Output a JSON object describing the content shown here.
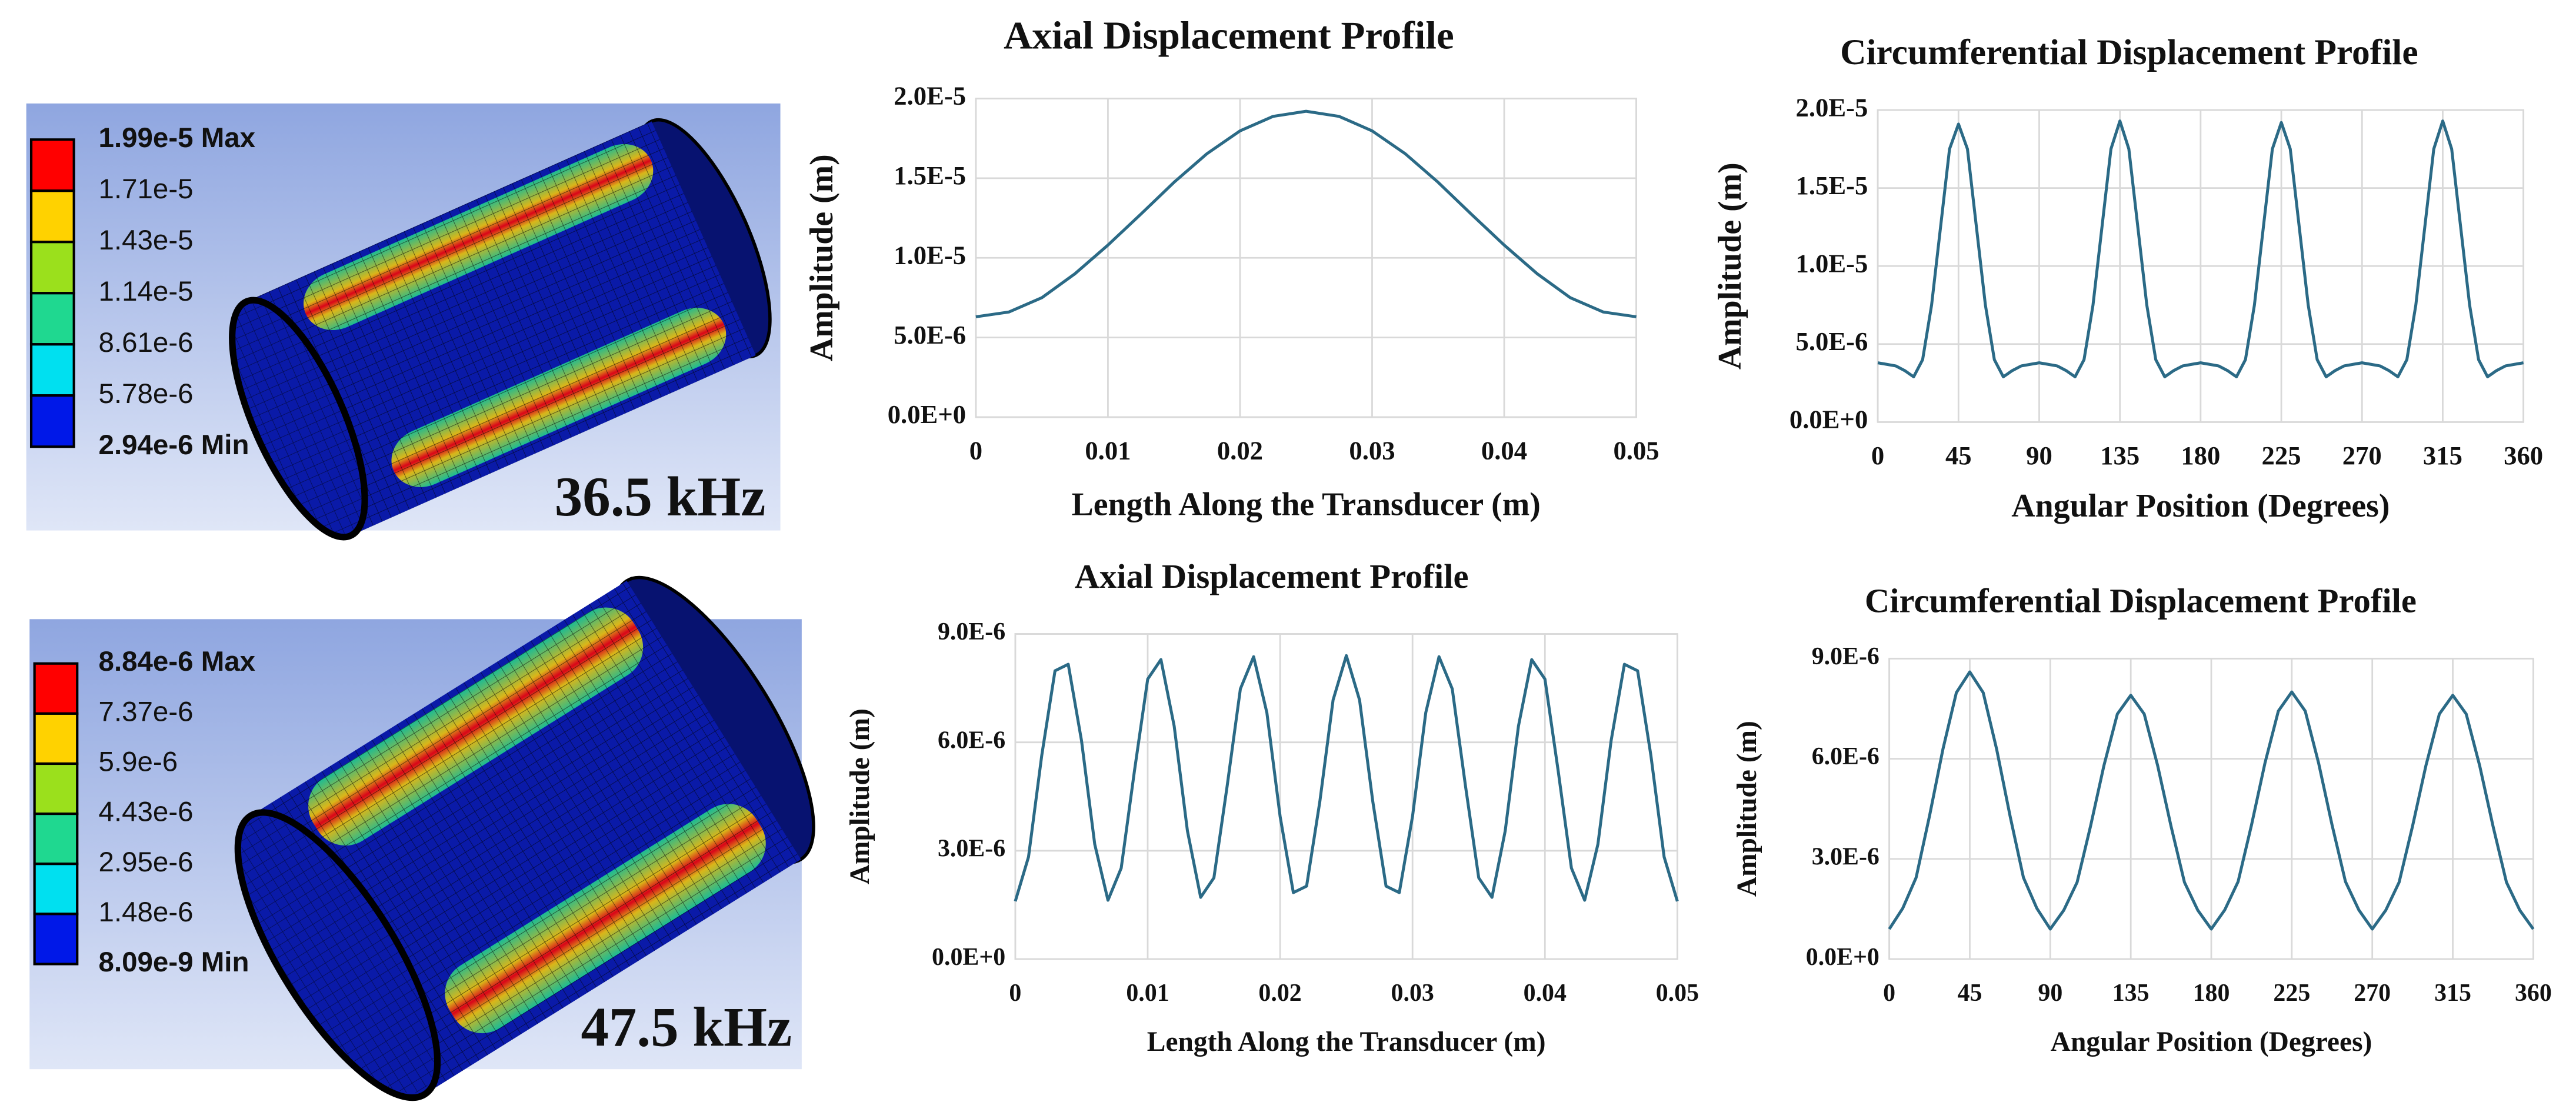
{
  "chart_data": [
    {
      "type": "contour",
      "legend_labels": [
        "1.99e-5 Max",
        "1.71e-5",
        "1.43e-5",
        "1.14e-5",
        "8.61e-6",
        "5.78e-6",
        "2.94e-6 Min"
      ],
      "legend_colors": [
        "#ff0000",
        "#ffd200",
        "#9be01c",
        "#1fd890",
        "#00e0f0",
        "#0018e8"
      ],
      "label": "36.5 kHz"
    },
    {
      "type": "line",
      "title": "Axial Displacement Profile",
      "xlabel": "Length Along the Transducer (m)",
      "ylabel": "Amplitude (m)",
      "x": [
        0,
        0.0025,
        0.005,
        0.0075,
        0.01,
        0.0125,
        0.015,
        0.0175,
        0.02,
        0.0225,
        0.025,
        0.0275,
        0.03,
        0.0325,
        0.035,
        0.0375,
        0.04,
        0.0425,
        0.045,
        0.0475,
        0.05
      ],
      "values": [
        6.3e-06,
        6.6e-06,
        7.5e-06,
        9e-06,
        1.08e-05,
        1.275e-05,
        1.474e-05,
        1.654e-05,
        1.797e-05,
        1.888e-05,
        1.92e-05,
        1.888e-05,
        1.797e-05,
        1.654e-05,
        1.474e-05,
        1.275e-05,
        1.08e-05,
        9e-06,
        7.5e-06,
        6.6e-06,
        6.3e-06
      ],
      "color": "#2b6a86",
      "xlim": [
        0,
        0.05
      ],
      "xticks": [
        0,
        0.01,
        0.02,
        0.03,
        0.04,
        0.05
      ],
      "ylim": [
        0,
        2e-05
      ],
      "yticks": [
        {
          "value": 0,
          "label": "0.0E+0"
        },
        {
          "value": 5e-06,
          "label": "5.0E-6"
        },
        {
          "value": 1e-05,
          "label": "1.0E-5"
        },
        {
          "value": 1.5e-05,
          "label": "1.5E-5"
        },
        {
          "value": 2e-05,
          "label": "2.0E-5"
        }
      ],
      "grid": true
    },
    {
      "type": "line",
      "title": "Circumferential Displacement Profile",
      "xlabel": "Angular Position (Degrees)",
      "ylabel": "Amplitude (m)",
      "x": [
        0,
        5,
        10,
        15,
        20,
        25,
        30,
        35,
        40,
        45,
        50,
        55,
        60,
        65,
        70,
        75,
        80,
        85,
        90,
        95,
        100,
        105,
        110,
        115,
        120,
        125,
        130,
        135,
        140,
        145,
        150,
        155,
        160,
        165,
        170,
        175,
        180,
        185,
        190,
        195,
        200,
        205,
        210,
        215,
        220,
        225,
        230,
        235,
        240,
        245,
        250,
        255,
        260,
        265,
        270,
        275,
        280,
        285,
        290,
        295,
        300,
        305,
        310,
        315,
        320,
        325,
        330,
        335,
        340,
        345,
        350,
        355,
        360
      ],
      "values": [
        3.8e-06,
        3.7e-06,
        3.6e-06,
        3.3e-06,
        2.9e-06,
        4e-06,
        7.5e-06,
        1.25e-05,
        1.75e-05,
        1.91e-05,
        1.75e-05,
        1.25e-05,
        7.5e-06,
        4e-06,
        2.9e-06,
        3.3e-06,
        3.6e-06,
        3.7e-06,
        3.8e-06,
        3.7e-06,
        3.6e-06,
        3.3e-06,
        2.9e-06,
        4e-06,
        7.5e-06,
        1.25e-05,
        1.75e-05,
        1.93e-05,
        1.75e-05,
        1.25e-05,
        7.5e-06,
        4e-06,
        2.9e-06,
        3.3e-06,
        3.6e-06,
        3.7e-06,
        3.8e-06,
        3.7e-06,
        3.6e-06,
        3.3e-06,
        2.9e-06,
        4e-06,
        7.5e-06,
        1.25e-05,
        1.75e-05,
        1.92e-05,
        1.75e-05,
        1.25e-05,
        7.5e-06,
        4e-06,
        2.9e-06,
        3.3e-06,
        3.6e-06,
        3.7e-06,
        3.8e-06,
        3.7e-06,
        3.6e-06,
        3.3e-06,
        2.9e-06,
        4e-06,
        7.5e-06,
        1.25e-05,
        1.75e-05,
        1.93e-05,
        1.75e-05,
        1.25e-05,
        7.5e-06,
        4e-06,
        2.9e-06,
        3.3e-06,
        3.6e-06,
        3.7e-06,
        3.8e-06
      ],
      "color": "#2b6a86",
      "xlim": [
        0,
        360
      ],
      "xticks": [
        0,
        45,
        90,
        135,
        180,
        225,
        270,
        315,
        360
      ],
      "ylim": [
        0,
        2e-05
      ],
      "yticks": [
        {
          "value": 0,
          "label": "0.0E+0"
        },
        {
          "value": 5e-06,
          "label": "5.0E-6"
        },
        {
          "value": 1e-05,
          "label": "1.0E-5"
        },
        {
          "value": 1.5e-05,
          "label": "1.5E-5"
        },
        {
          "value": 2e-05,
          "label": "2.0E-5"
        }
      ],
      "grid": true
    },
    {
      "type": "contour",
      "legend_labels": [
        "8.84e-6 Max",
        "7.37e-6",
        "5.9e-6",
        "4.43e-6",
        "2.95e-6",
        "1.48e-6",
        "8.09e-9 Min"
      ],
      "legend_colors": [
        "#ff0000",
        "#ffd200",
        "#9be01c",
        "#1fd890",
        "#00e0f0",
        "#0018e8"
      ],
      "label": "47.5 kHz"
    },
    {
      "type": "line",
      "title": "Axial Displacement Profile",
      "xlabel": "Length Along the Transducer (m)",
      "ylabel": "Amplitude (m)",
      "x": [
        0,
        0.001,
        0.002,
        0.003,
        0.004,
        0.005,
        0.006,
        0.007,
        0.008,
        0.009,
        0.01,
        0.011,
        0.012,
        0.013,
        0.014,
        0.015,
        0.016,
        0.017,
        0.018,
        0.019,
        0.02,
        0.021,
        0.022,
        0.023,
        0.024,
        0.025,
        0.026,
        0.027,
        0.028,
        0.029,
        0.03,
        0.031,
        0.032,
        0.033,
        0.034,
        0.035,
        0.036,
        0.037,
        0.038,
        0.039,
        0.04,
        0.041,
        0.042,
        0.043,
        0.044,
        0.045,
        0.046,
        0.047,
        0.048,
        0.049,
        0.05
      ],
      "values": [
        1.6e-06,
        2.83e-06,
        5.64e-06,
        7.98e-06,
        8.16e-06,
        6.05e-06,
        3.18e-06,
        1.63e-06,
        2.52e-06,
        5.21e-06,
        7.75e-06,
        8.29e-06,
        6.45e-06,
        3.55e-06,
        1.71e-06,
        2.25e-06,
        4.79e-06,
        7.48e-06,
        8.37e-06,
        6.82e-06,
        3.95e-06,
        1.84e-06,
        2.02e-06,
        4.36e-06,
        7.17e-06,
        8.4e-06,
        7.17e-06,
        4.36e-06,
        2.02e-06,
        1.84e-06,
        3.95e-06,
        6.82e-06,
        8.37e-06,
        7.48e-06,
        4.79e-06,
        2.25e-06,
        1.71e-06,
        3.55e-06,
        6.45e-06,
        8.29e-06,
        7.75e-06,
        5.21e-06,
        2.52e-06,
        1.63e-06,
        3.18e-06,
        6.05e-06,
        8.16e-06,
        7.98e-06,
        5.64e-06,
        2.83e-06,
        1.6e-06
      ],
      "color": "#2b6a86",
      "xlim": [
        0,
        0.05
      ],
      "xticks": [
        0,
        0.01,
        0.02,
        0.03,
        0.04,
        0.05
      ],
      "ylim": [
        0,
        9e-06
      ],
      "yticks": [
        {
          "value": 0,
          "label": "0.0E+0"
        },
        {
          "value": 3e-06,
          "label": "3.0E-6"
        },
        {
          "value": 6e-06,
          "label": "6.0E-6"
        },
        {
          "value": 9e-06,
          "label": "9.0E-6"
        }
      ],
      "grid": true
    },
    {
      "type": "line",
      "title": "Circumferential Displacement Profile",
      "xlabel": "Angular Position (Degrees)",
      "ylabel": "Amplitude (m)",
      "x": [
        0,
        7.5,
        15,
        22.5,
        30,
        37.5,
        45,
        52.5,
        60,
        67.5,
        75,
        82.5,
        90,
        97.5,
        105,
        112.5,
        120,
        127.5,
        135,
        142.5,
        150,
        157.5,
        165,
        172.5,
        180,
        187.5,
        195,
        202.5,
        210,
        217.5,
        225,
        232.5,
        240,
        247.5,
        255,
        262.5,
        270,
        277.5,
        285,
        292.5,
        300,
        307.5,
        315,
        322.5,
        330,
        337.5,
        345,
        352.5,
        360
      ],
      "values": [
        9e-07,
        1.52e-06,
        2.44e-06,
        4.29e-06,
        6.29e-06,
        7.98e-06,
        8.6e-06,
        7.98e-06,
        6.29e-06,
        4.29e-06,
        2.44e-06,
        1.52e-06,
        9e-07,
        1.46e-06,
        2.3e-06,
        3.98e-06,
        5.8e-06,
        7.34e-06,
        7.9e-06,
        7.34e-06,
        5.8e-06,
        3.98e-06,
        2.3e-06,
        1.46e-06,
        9e-07,
        1.47e-06,
        2.32e-06,
        4.02e-06,
        5.87e-06,
        7.43e-06,
        8e-06,
        7.43e-06,
        5.87e-06,
        4.02e-06,
        2.32e-06,
        1.47e-06,
        9e-07,
        1.46e-06,
        2.3e-06,
        3.98e-06,
        5.8e-06,
        7.34e-06,
        7.9e-06,
        7.34e-06,
        5.8e-06,
        3.98e-06,
        2.3e-06,
        1.46e-06,
        9e-07
      ],
      "color": "#2b6a86",
      "xlim": [
        0,
        360
      ],
      "xticks": [
        0,
        45,
        90,
        135,
        180,
        225,
        270,
        315,
        360
      ],
      "ylim": [
        0,
        9e-06
      ],
      "yticks": [
        {
          "value": 0,
          "label": "0.0E+0"
        },
        {
          "value": 3e-06,
          "label": "3.0E-6"
        },
        {
          "value": 6e-06,
          "label": "6.0E-6"
        },
        {
          "value": 9e-06,
          "label": "9.0E-6"
        }
      ],
      "grid": true
    }
  ]
}
